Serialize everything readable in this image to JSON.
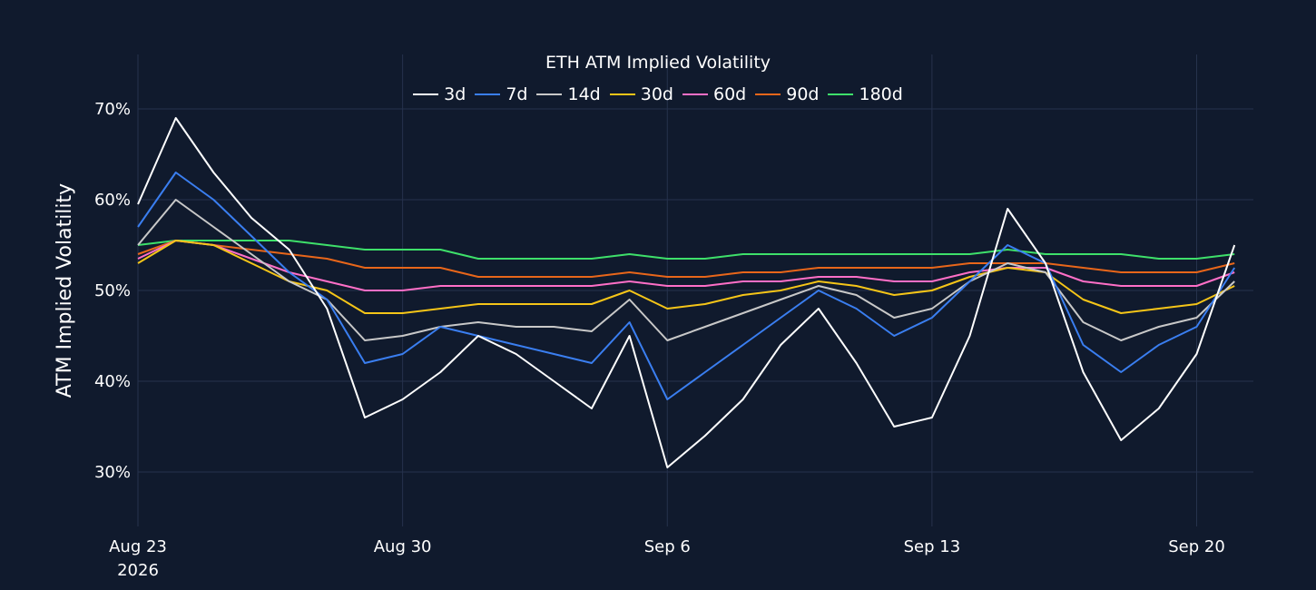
{
  "chart_data": {
    "type": "line",
    "title": "ETH ATM Implied Volatility",
    "ylabel": "ATM Implied Volatility",
    "xlabel": "",
    "ylim": [
      24,
      76
    ],
    "yticks": [
      30,
      40,
      50,
      60,
      70
    ],
    "ytick_labels": [
      "30%",
      "40%",
      "50%",
      "60%",
      "70%"
    ],
    "xlim": [
      "2026-08-23",
      "2026-09-21T12:00"
    ],
    "xticks": [
      "2026-08-23",
      "2026-08-30",
      "2026-09-06",
      "2026-09-13",
      "2026-09-20"
    ],
    "xtick_labels": [
      "Aug 23",
      "Aug 30",
      "Sep 6",
      "Sep 13",
      "Sep 20"
    ],
    "xtick_year": "2026",
    "grid": true,
    "legend_position": "top-center",
    "series": [
      {
        "name": "3d",
        "color": "#ffffff",
        "x": [
          "2026-08-23",
          "2026-08-24",
          "2026-08-25",
          "2026-08-26",
          "2026-08-27",
          "2026-08-28",
          "2026-08-29",
          "2026-08-30",
          "2026-08-31",
          "2026-09-01",
          "2026-09-02",
          "2026-09-03",
          "2026-09-04",
          "2026-09-05",
          "2026-09-06",
          "2026-09-07",
          "2026-09-08",
          "2026-09-09",
          "2026-09-10",
          "2026-09-11",
          "2026-09-12",
          "2026-09-13",
          "2026-09-14",
          "2026-09-15",
          "2026-09-16",
          "2026-09-17",
          "2026-09-18",
          "2026-09-19",
          "2026-09-20",
          "2026-09-21"
        ],
        "y": [
          59.5,
          69,
          63,
          58,
          54.5,
          48,
          36,
          38,
          41,
          45,
          43,
          40,
          37,
          45,
          30.5,
          34,
          38,
          44,
          48,
          42,
          35,
          36,
          45,
          59,
          53,
          41,
          33.5,
          37,
          43,
          55
        ]
      },
      {
        "name": "7d",
        "color": "#3a7ef0",
        "x": [
          "2026-08-23",
          "2026-08-24",
          "2026-08-25",
          "2026-08-26",
          "2026-08-27",
          "2026-08-28",
          "2026-08-29",
          "2026-08-30",
          "2026-08-31",
          "2026-09-01",
          "2026-09-02",
          "2026-09-03",
          "2026-09-04",
          "2026-09-05",
          "2026-09-06",
          "2026-09-07",
          "2026-09-08",
          "2026-09-09",
          "2026-09-10",
          "2026-09-11",
          "2026-09-12",
          "2026-09-13",
          "2026-09-14",
          "2026-09-15",
          "2026-09-16",
          "2026-09-17",
          "2026-09-18",
          "2026-09-19",
          "2026-09-20",
          "2026-09-21"
        ],
        "y": [
          57,
          63,
          60,
          56,
          52,
          49,
          42,
          43,
          46,
          45,
          44,
          43,
          42,
          46.5,
          38,
          41,
          44,
          47,
          50,
          48,
          45,
          47,
          51,
          55,
          53,
          44,
          41,
          44,
          46,
          52.5
        ]
      },
      {
        "name": "14d",
        "color": "#c8c8c8",
        "x": [
          "2026-08-23",
          "2026-08-24",
          "2026-08-25",
          "2026-08-26",
          "2026-08-27",
          "2026-08-28",
          "2026-08-29",
          "2026-08-30",
          "2026-08-31",
          "2026-09-01",
          "2026-09-02",
          "2026-09-03",
          "2026-09-04",
          "2026-09-05",
          "2026-09-06",
          "2026-09-07",
          "2026-09-08",
          "2026-09-09",
          "2026-09-10",
          "2026-09-11",
          "2026-09-12",
          "2026-09-13",
          "2026-09-14",
          "2026-09-15",
          "2026-09-16",
          "2026-09-17",
          "2026-09-18",
          "2026-09-19",
          "2026-09-20",
          "2026-09-21"
        ],
        "y": [
          55,
          60,
          57,
          54,
          51,
          49,
          44.5,
          45,
          46,
          46.5,
          46,
          46,
          45.5,
          49,
          44.5,
          46,
          47.5,
          49,
          50.5,
          49.5,
          47,
          48,
          51,
          53,
          52,
          46.5,
          44.5,
          46,
          47,
          51
        ]
      },
      {
        "name": "30d",
        "color": "#f5c518",
        "x": [
          "2026-08-23",
          "2026-08-24",
          "2026-08-25",
          "2026-08-26",
          "2026-08-27",
          "2026-08-28",
          "2026-08-29",
          "2026-08-30",
          "2026-08-31",
          "2026-09-01",
          "2026-09-02",
          "2026-09-03",
          "2026-09-04",
          "2026-09-05",
          "2026-09-06",
          "2026-09-07",
          "2026-09-08",
          "2026-09-09",
          "2026-09-10",
          "2026-09-11",
          "2026-09-12",
          "2026-09-13",
          "2026-09-14",
          "2026-09-15",
          "2026-09-16",
          "2026-09-17",
          "2026-09-18",
          "2026-09-19",
          "2026-09-20",
          "2026-09-21"
        ],
        "y": [
          53,
          55.5,
          55,
          53,
          51,
          50,
          47.5,
          47.5,
          48,
          48.5,
          48.5,
          48.5,
          48.5,
          50,
          48,
          48.5,
          49.5,
          50,
          51,
          50.5,
          49.5,
          50,
          51.5,
          52.5,
          52,
          49,
          47.5,
          48,
          48.5,
          50.5
        ]
      },
      {
        "name": "60d",
        "color": "#ff6fc7",
        "x": [
          "2026-08-23",
          "2026-08-24",
          "2026-08-25",
          "2026-08-26",
          "2026-08-27",
          "2026-08-28",
          "2026-08-29",
          "2026-08-30",
          "2026-08-31",
          "2026-09-01",
          "2026-09-02",
          "2026-09-03",
          "2026-09-04",
          "2026-09-05",
          "2026-09-06",
          "2026-09-07",
          "2026-09-08",
          "2026-09-09",
          "2026-09-10",
          "2026-09-11",
          "2026-09-12",
          "2026-09-13",
          "2026-09-14",
          "2026-09-15",
          "2026-09-16",
          "2026-09-17",
          "2026-09-18",
          "2026-09-19",
          "2026-09-20",
          "2026-09-21"
        ],
        "y": [
          53.5,
          55.5,
          55,
          53.5,
          52,
          51,
          50,
          50,
          50.5,
          50.5,
          50.5,
          50.5,
          50.5,
          51,
          50.5,
          50.5,
          51,
          51,
          51.5,
          51.5,
          51,
          51,
          52,
          52.5,
          52.5,
          51,
          50.5,
          50.5,
          50.5,
          52
        ]
      },
      {
        "name": "90d",
        "color": "#e8661a",
        "x": [
          "2026-08-23",
          "2026-08-24",
          "2026-08-25",
          "2026-08-26",
          "2026-08-27",
          "2026-08-28",
          "2026-08-29",
          "2026-08-30",
          "2026-08-31",
          "2026-09-01",
          "2026-09-02",
          "2026-09-03",
          "2026-09-04",
          "2026-09-05",
          "2026-09-06",
          "2026-09-07",
          "2026-09-08",
          "2026-09-09",
          "2026-09-10",
          "2026-09-11",
          "2026-09-12",
          "2026-09-13",
          "2026-09-14",
          "2026-09-15",
          "2026-09-16",
          "2026-09-17",
          "2026-09-18",
          "2026-09-19",
          "2026-09-20",
          "2026-09-21"
        ],
        "y": [
          54,
          55.5,
          55,
          54.5,
          54,
          53.5,
          52.5,
          52.5,
          52.5,
          51.5,
          51.5,
          51.5,
          51.5,
          52,
          51.5,
          51.5,
          52,
          52,
          52.5,
          52.5,
          52.5,
          52.5,
          53,
          53,
          53,
          52.5,
          52,
          52,
          52,
          53
        ]
      },
      {
        "name": "180d",
        "color": "#3ee06a",
        "x": [
          "2026-08-23",
          "2026-08-24",
          "2026-08-25",
          "2026-08-26",
          "2026-08-27",
          "2026-08-28",
          "2026-08-29",
          "2026-08-30",
          "2026-08-31",
          "2026-09-01",
          "2026-09-02",
          "2026-09-03",
          "2026-09-04",
          "2026-09-05",
          "2026-09-06",
          "2026-09-07",
          "2026-09-08",
          "2026-09-09",
          "2026-09-10",
          "2026-09-11",
          "2026-09-12",
          "2026-09-13",
          "2026-09-14",
          "2026-09-15",
          "2026-09-16",
          "2026-09-17",
          "2026-09-18",
          "2026-09-19",
          "2026-09-20",
          "2026-09-21"
        ],
        "y": [
          55,
          55.5,
          55.5,
          55.5,
          55.5,
          55,
          54.5,
          54.5,
          54.5,
          53.5,
          53.5,
          53.5,
          53.5,
          54,
          53.5,
          53.5,
          54,
          54,
          54,
          54,
          54,
          54,
          54,
          54.5,
          54,
          54,
          54,
          53.5,
          53.5,
          54
        ]
      }
    ]
  },
  "colors": {
    "background": "#101a2d",
    "grid": "#26324d",
    "text": "#ffffff"
  }
}
